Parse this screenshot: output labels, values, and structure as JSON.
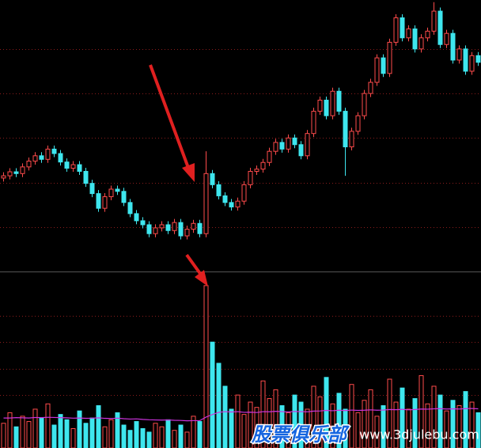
{
  "chart_data": [
    {
      "type": "candlestick",
      "open": [
        21.0,
        21.5,
        22.4,
        22.0,
        23.5,
        24.8,
        26.0,
        25.2,
        27.5,
        26.5,
        24.6,
        23.2,
        24.0,
        22.5,
        19.8,
        17.5,
        14.2,
        16.8,
        18.5,
        18.0,
        15.5,
        13.0,
        11.4,
        10.5,
        8.5,
        9.8,
        10.5,
        9.2,
        11.0,
        8.0,
        9.5,
        10.8,
        8.5,
        22.0,
        19.5,
        17.0,
        15.5,
        14.5,
        15.8,
        19.5,
        22.5,
        23.0,
        24.5,
        27.0,
        29.0,
        27.5,
        30.0,
        28.5,
        26.0,
        31.0,
        36.0,
        38.5,
        35.0,
        40.5,
        36.0,
        28.0,
        31.5,
        35.0,
        40.0,
        42.5,
        48.0,
        44.5,
        51.5,
        57.0,
        52.5,
        54.5,
        50.0,
        52.5,
        54.0,
        58.5,
        51.0,
        53.5,
        47.5,
        50.0,
        45.0,
        48.5
      ],
      "high": [
        22.3,
        23.2,
        23.2,
        24.3,
        25.6,
        26.8,
        26.8,
        28.3,
        28.3,
        27.3,
        25.4,
        24.8,
        24.8,
        23.3,
        20.6,
        18.3,
        17.6,
        19.3,
        19.3,
        18.8,
        16.3,
        13.8,
        12.2,
        11.3,
        10.6,
        11.3,
        11.3,
        11.8,
        11.8,
        10.3,
        11.6,
        11.6,
        27.0,
        22.8,
        20.3,
        17.8,
        16.3,
        16.6,
        20.3,
        23.3,
        23.8,
        25.3,
        27.8,
        29.8,
        29.8,
        30.8,
        30.8,
        29.3,
        31.8,
        36.8,
        39.3,
        39.3,
        41.3,
        41.3,
        36.8,
        32.3,
        35.8,
        40.8,
        43.3,
        48.8,
        48.8,
        52.3,
        57.8,
        57.8,
        55.3,
        55.3,
        53.3,
        54.8,
        60.5,
        59.3,
        54.3,
        54.3,
        50.8,
        50.8,
        49.3,
        49.3
      ],
      "low": [
        20.2,
        20.7,
        21.2,
        21.2,
        22.7,
        24.0,
        24.4,
        24.4,
        25.7,
        23.8,
        22.4,
        22.4,
        21.7,
        19.0,
        16.7,
        13.4,
        13.4,
        16.0,
        17.2,
        14.7,
        12.2,
        10.6,
        9.7,
        7.7,
        7.7,
        9.0,
        8.4,
        8.4,
        7.2,
        7.2,
        8.7,
        7.7,
        7.7,
        18.7,
        16.2,
        14.7,
        13.7,
        13.7,
        15.0,
        18.7,
        21.7,
        22.2,
        23.7,
        26.2,
        26.7,
        26.7,
        27.7,
        25.2,
        25.2,
        30.2,
        35.2,
        34.2,
        34.2,
        35.2,
        21.5,
        27.2,
        30.7,
        34.2,
        39.2,
        41.7,
        43.7,
        43.7,
        50.7,
        51.7,
        51.7,
        49.2,
        49.2,
        51.7,
        53.2,
        50.2,
        50.2,
        46.7,
        46.7,
        44.2,
        44.2,
        46.2
      ],
      "close": [
        21.5,
        22.4,
        22.0,
        23.5,
        24.8,
        26.0,
        25.2,
        27.5,
        26.5,
        24.6,
        23.2,
        24.0,
        22.5,
        19.8,
        17.5,
        14.2,
        16.8,
        18.5,
        18.0,
        15.5,
        13.0,
        11.4,
        10.5,
        8.5,
        9.8,
        10.5,
        9.2,
        11.0,
        8.0,
        9.5,
        10.8,
        8.5,
        22.0,
        19.5,
        17.0,
        15.5,
        14.5,
        15.8,
        19.5,
        22.5,
        23.0,
        24.5,
        27.0,
        29.0,
        27.5,
        30.0,
        28.5,
        26.0,
        31.0,
        36.0,
        38.5,
        35.0,
        40.5,
        36.0,
        28.0,
        31.5,
        35.0,
        40.0,
        42.5,
        48.0,
        44.5,
        51.5,
        57.0,
        52.5,
        54.5,
        50.0,
        52.5,
        54.0,
        58.5,
        51.0,
        53.5,
        47.5,
        50.0,
        45.0,
        48.5,
        47.0
      ],
      "up_color": "#ff4b4b",
      "down_color": "#3ee6ee",
      "ylim": [
        0,
        61
      ],
      "yticks": [
        10,
        20,
        30,
        40,
        50
      ],
      "grid": true
    },
    {
      "type": "volume",
      "values": [
        14,
        20,
        12,
        18,
        15,
        22,
        17,
        25,
        13,
        19,
        16,
        11,
        21,
        14,
        17,
        24,
        12,
        16,
        20,
        13,
        10,
        15,
        11,
        9,
        14,
        12,
        16,
        10,
        13,
        9,
        18,
        15,
        92,
        60,
        48,
        35,
        22,
        30,
        19,
        26,
        23,
        38,
        28,
        33,
        24,
        20,
        30,
        26,
        22,
        35,
        29,
        40,
        25,
        31,
        22,
        36,
        20,
        27,
        33,
        18,
        24,
        39,
        26,
        34,
        22,
        28,
        41,
        25,
        35,
        30,
        21,
        27,
        24,
        32,
        26,
        20
      ],
      "ma": {
        "color": "#cc33dd",
        "values": [
          17,
          17,
          17.2,
          17.1,
          17,
          17.3,
          17.2,
          17.4,
          17.3,
          17.2,
          17.1,
          16.9,
          17,
          16.8,
          16.9,
          17.1,
          16.8,
          16.7,
          16.9,
          16.6,
          16.4,
          16.5,
          16.2,
          16,
          15.9,
          15.8,
          15.9,
          15.7,
          15.6,
          15.4,
          15.5,
          15.5,
          17.5,
          19,
          20.2,
          20.6,
          20.4,
          20.6,
          20.2,
          20.3,
          20.1,
          20.6,
          20.5,
          20.8,
          20.6,
          20.4,
          20.7,
          20.6,
          20.5,
          20.9,
          21,
          21.3,
          21.1,
          21.4,
          21.2,
          21.5,
          21.3,
          21.4,
          21.6,
          21.4,
          21.5,
          21.8,
          21.7,
          21.9,
          21.6,
          21.8,
          22.1,
          22,
          22.2,
          22.3,
          22.1,
          22.2,
          22.1,
          22.3,
          22.4,
          22.2
        ]
      },
      "ylim": [
        0,
        100
      ],
      "yticks": [
        30,
        45,
        60,
        75
      ],
      "grid": true
    }
  ],
  "watermark": {
    "title": "股票俱乐部",
    "url": "www.3djulebu.com"
  }
}
